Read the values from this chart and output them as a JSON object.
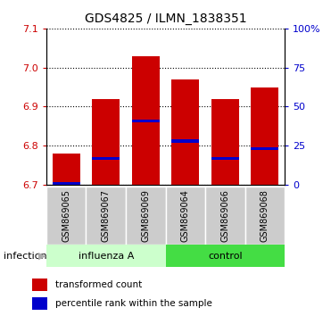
{
  "title": "GDS4825 / ILMN_1838351",
  "categories": [
    "GSM869065",
    "GSM869067",
    "GSM869069",
    "GSM869064",
    "GSM869066",
    "GSM869068"
  ],
  "transformed_counts": [
    6.78,
    6.92,
    7.03,
    6.97,
    6.92,
    6.95
  ],
  "percentile_ranks": [
    6.704,
    6.767,
    6.863,
    6.812,
    6.767,
    6.793
  ],
  "bar_bottom": 6.7,
  "ylim_left": [
    6.7,
    7.1
  ],
  "ylim_right": [
    0,
    100
  ],
  "yticks_left": [
    6.7,
    6.8,
    6.9,
    7.0,
    7.1
  ],
  "yticks_right": [
    0,
    25,
    50,
    75,
    100
  ],
  "bar_color": "#cc0000",
  "percentile_color": "#0000cc",
  "bar_width": 0.7,
  "influenza_color": "#ccffcc",
  "control_color": "#44dd44",
  "tick_bg_color": "#cccccc",
  "legend_entries": [
    "transformed count",
    "percentile rank within the sample"
  ],
  "infection_label": "infection"
}
